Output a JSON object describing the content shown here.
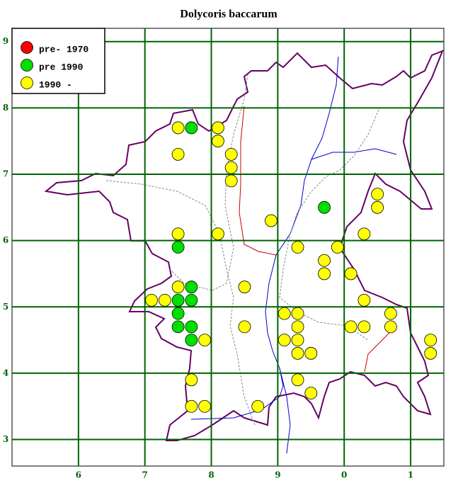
{
  "chart_data": {
    "type": "scatter",
    "title": "Dolycoris baccarum",
    "xlim": [
      5,
      11.5
    ],
    "ylim": [
      2.6,
      9.2
    ],
    "xticks": [
      6,
      7,
      8,
      9,
      {
        "value": 10,
        "label": "0"
      },
      {
        "value": 11,
        "label": "1"
      }
    ],
    "yticks": [
      3,
      4,
      5,
      6,
      7,
      8,
      9
    ],
    "grid": true,
    "legend": "top-left",
    "series": [
      {
        "name": "pre- 1970",
        "color": "#ff0000",
        "x": [],
        "values": []
      },
      {
        "name": "pre 1990",
        "color": "#00e000",
        "x": [
          7.7,
          9.7,
          7.5,
          7.7,
          7.5,
          7.7,
          7.5,
          7.5,
          7.7,
          7.7
        ],
        "values": [
          7.7,
          6.5,
          5.9,
          5.3,
          5.1,
          5.1,
          4.9,
          4.7,
          4.7,
          4.5
        ]
      },
      {
        "name": "1990 -",
        "color": "#ffff00",
        "x": [
          7.5,
          8.1,
          8.1,
          7.5,
          8.3,
          8.3,
          8.3,
          10.5,
          10.5,
          8.9,
          7.5,
          8.1,
          10.3,
          9.3,
          9.9,
          9.7,
          9.7,
          10.1,
          8.5,
          7.5,
          7.1,
          7.3,
          10.3,
          9.1,
          9.3,
          10.7,
          8.5,
          9.3,
          10.1,
          10.3,
          10.7,
          7.9,
          9.1,
          9.3,
          11.3,
          9.3,
          9.5,
          11.3,
          7.7,
          9.3,
          9.5,
          7.7,
          7.9,
          8.7
        ],
        "values": [
          7.7,
          7.7,
          7.5,
          7.3,
          7.3,
          7.1,
          6.9,
          6.7,
          6.5,
          6.3,
          6.1,
          6.1,
          6.1,
          5.9,
          5.9,
          5.7,
          5.5,
          5.5,
          5.3,
          5.3,
          5.1,
          5.1,
          5.1,
          4.9,
          4.9,
          4.9,
          4.7,
          4.7,
          4.7,
          4.7,
          4.7,
          4.5,
          4.5,
          4.5,
          4.5,
          4.3,
          4.3,
          4.3,
          3.9,
          3.9,
          3.7,
          3.5,
          3.5,
          3.5
        ]
      }
    ]
  }
}
